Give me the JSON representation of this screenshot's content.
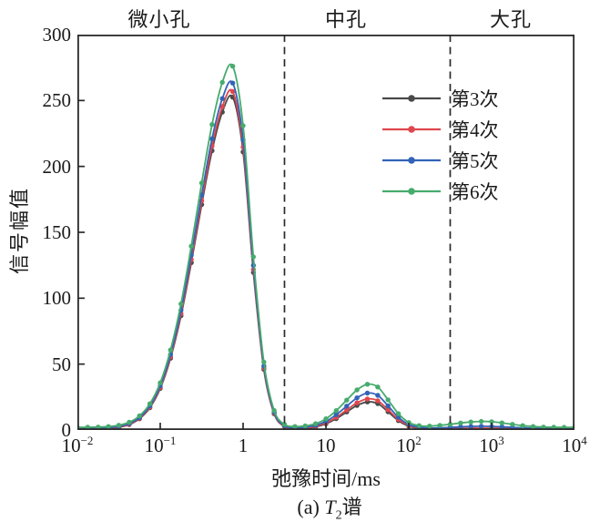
{
  "header": {
    "region_labels": [
      {
        "label": "微小孔"
      },
      {
        "label": "中孔"
      },
      {
        "label": "大孔"
      }
    ]
  },
  "axes": {
    "y": {
      "title": "信号幅值",
      "tick_labels": [
        "300",
        "250",
        "200",
        "150",
        "100",
        "50",
        "0"
      ],
      "tick_values": [
        0,
        50,
        100,
        150,
        200,
        250,
        300
      ],
      "min": 0,
      "max": 300
    },
    "x": {
      "title": "弛豫时间/ms",
      "ticks": [
        {
          "base": "10",
          "exp": "−2"
        },
        {
          "base": "10",
          "exp": "−1"
        },
        {
          "base": "1",
          "exp": ""
        },
        {
          "base": "10",
          "exp": ""
        },
        {
          "base": "10",
          "exp": "2"
        },
        {
          "base": "10",
          "exp": "3"
        },
        {
          "base": "10",
          "exp": "4"
        }
      ],
      "tick_logs": [
        -2,
        -1,
        0,
        1,
        2,
        3,
        4
      ],
      "scale": "log",
      "log_min": -2,
      "log_max": 4
    }
  },
  "legend": {
    "items": [
      {
        "label": "第3次",
        "color": "#4a4a4a"
      },
      {
        "label": "第4次",
        "color": "#e0474d"
      },
      {
        "label": "第5次",
        "color": "#3263b8"
      },
      {
        "label": "第6次",
        "color": "#47ab6e"
      }
    ]
  },
  "caption": {
    "prefix": "(a) ",
    "symbol": "T",
    "subscript": "2",
    "suffix": "谱"
  },
  "chart_data": {
    "type": "line",
    "title": "",
    "xlabel": "弛豫时间/ms",
    "ylabel": "信号幅值",
    "xscale": "log",
    "xlim": [
      0.01,
      10000
    ],
    "ylim": [
      0,
      300
    ],
    "grid": false,
    "legend_position": "upper-center-left",
    "pore_regions": [
      {
        "label": "微小孔",
        "range_ms": [
          0.01,
          3.16
        ]
      },
      {
        "label": "中孔",
        "range_ms": [
          3.16,
          316
        ]
      },
      {
        "label": "大孔",
        "range_ms": [
          316,
          10000
        ]
      }
    ],
    "boundary_lines_ms": [
      3.16,
      316
    ],
    "boundary_logs": [
      0.5,
      2.5
    ],
    "x": [
      0.01,
      0.0133,
      0.0178,
      0.0237,
      0.0316,
      0.0422,
      0.0562,
      0.075,
      0.1,
      0.133,
      0.178,
      0.237,
      0.316,
      0.422,
      0.562,
      0.75,
      1,
      1.33,
      1.78,
      2.37,
      3.16,
      4.22,
      5.62,
      7.5,
      10,
      13.3,
      17.8,
      23.7,
      31.6,
      42.2,
      56.2,
      75,
      100,
      133,
      178,
      237,
      316,
      422,
      562,
      750,
      1000,
      1330,
      1780,
      2370,
      3160,
      4220,
      5620,
      7500,
      10000
    ],
    "series": [
      {
        "name": "第3次",
        "color": "#4a4a4a",
        "peak_summary": {
          "peak1_ms": 0.75,
          "peak1_amp": 252,
          "peak2_ms": 33,
          "peak2_amp": 21
        },
        "values": [
          0.5,
          0.6,
          0.7,
          1.1,
          2.0,
          4.1,
          8.5,
          16.9,
          31.5,
          54.5,
          86.7,
          127.0,
          171.0,
          211.9,
          241.2,
          252.5,
          211.0,
          119.5,
          46.0,
          12.3,
          2.6,
          1.0,
          1.2,
          2.3,
          4.7,
          8.6,
          13.7,
          18.6,
          21.3,
          20.0,
          13.8,
          7.1,
          2.9,
          1.1,
          0.7,
          0.6,
          0.7,
          0.8,
          0.9,
          0.9,
          0.9,
          0.8,
          0.7,
          0.6,
          0.6,
          0.5,
          0.5,
          0.5,
          0.5
        ]
      },
      {
        "name": "第4次",
        "color": "#e0474d",
        "peak_summary": {
          "peak1_ms": 0.75,
          "peak1_amp": 257,
          "peak2_ms": 33,
          "peak2_amp": 23
        },
        "values": [
          0.8,
          0.9,
          1.0,
          1.4,
          2.3,
          4.4,
          8.9,
          17.5,
          32.3,
          55.6,
          88.3,
          129.3,
          174.0,
          215.5,
          245.4,
          256.8,
          214.6,
          121.7,
          47.0,
          12.8,
          2.9,
          1.3,
          1.5,
          2.8,
          5.4,
          9.6,
          15.2,
          20.6,
          23.6,
          22.2,
          15.4,
          8.0,
          3.4,
          1.5,
          1.0,
          1.0,
          1.1,
          1.2,
          1.4,
          1.4,
          1.4,
          1.3,
          1.1,
          1.0,
          0.9,
          0.8,
          0.8,
          0.8,
          0.8
        ]
      },
      {
        "name": "第5次",
        "color": "#3263b8",
        "peak_summary": {
          "peak1_ms": 0.75,
          "peak1_amp": 263,
          "peak2_ms": 33,
          "peak2_amp": 28
        },
        "values": [
          1.2,
          1.3,
          1.4,
          1.8,
          2.7,
          4.9,
          9.5,
          18.3,
          33.5,
          57.3,
          90.8,
          132.7,
          178.5,
          221.0,
          251.5,
          263.2,
          220.1,
          124.9,
          48.5,
          13.5,
          3.3,
          1.7,
          2.1,
          3.5,
          6.5,
          11.6,
          18.1,
          24.4,
          28.0,
          26.3,
          18.3,
          9.7,
          4.2,
          2.1,
          1.6,
          1.7,
          2.0,
          2.4,
          2.7,
          2.8,
          2.7,
          2.4,
          2.0,
          1.7,
          1.4,
          1.3,
          1.2,
          1.2,
          1.2
        ]
      },
      {
        "name": "第6次",
        "color": "#47ab6e",
        "peak_summary": {
          "peak1_ms": 0.75,
          "peak1_amp": 276,
          "peak2_ms": 33,
          "peak2_amp": 35,
          "peak3_ms": 800,
          "peak3_amp": 6.5
        },
        "values": [
          2.0,
          2.1,
          2.2,
          2.6,
          3.6,
          5.9,
          10.7,
          19.9,
          35.8,
          60.7,
          95.7,
          139.5,
          187.4,
          231.8,
          263.8,
          276.0,
          230.9,
          131.4,
          51.5,
          14.8,
          4.2,
          2.6,
          3.1,
          4.8,
          8.5,
          14.7,
          22.7,
          30.4,
          34.7,
          32.6,
          22.9,
          12.4,
          5.7,
          3.3,
          3.0,
          3.5,
          4.3,
          5.3,
          6.1,
          6.5,
          6.3,
          5.4,
          4.3,
          3.3,
          2.6,
          2.2,
          2.1,
          2.0,
          2.0
        ]
      }
    ]
  }
}
